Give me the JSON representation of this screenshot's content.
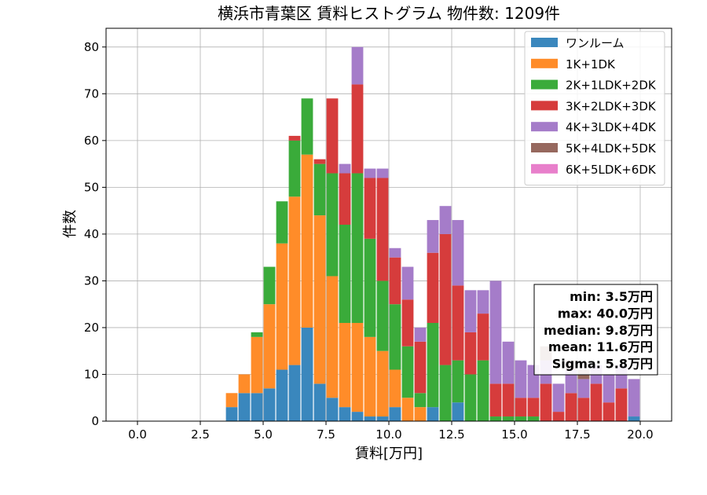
{
  "chart_data": {
    "type": "bar",
    "title": "横浜市青葉区 賃料ヒストグラム 物件数: 1209件",
    "xlabel": "賃料[万円]",
    "ylabel": "件数",
    "xlim": [
      -1.25,
      21.25
    ],
    "ylim": [
      0,
      84
    ],
    "xticks": [
      "0.0",
      "2.5",
      "5.0",
      "7.5",
      "10.0",
      "12.5",
      "15.0",
      "17.5",
      "20.0"
    ],
    "yticks": [
      "0",
      "10",
      "20",
      "30",
      "40",
      "50",
      "60",
      "70",
      "80"
    ],
    "grid": true,
    "legend_position": "top-right",
    "bin_width": 0.5,
    "x": [
      3.5,
      4.0,
      4.5,
      5.0,
      5.5,
      6.0,
      6.5,
      7.0,
      7.5,
      8.0,
      8.5,
      9.0,
      9.5,
      10.0,
      10.5,
      11.0,
      11.5,
      12.0,
      12.5,
      13.0,
      13.5,
      14.0,
      14.5,
      15.0,
      15.5,
      16.0,
      16.5,
      17.0,
      17.5,
      18.0,
      18.5,
      19.0,
      19.5
    ],
    "series": [
      {
        "name": "ワンルーム",
        "color": "#3a87bd",
        "values": [
          3,
          6,
          6,
          7,
          11,
          12,
          20,
          8,
          5,
          3,
          2,
          1,
          1,
          3,
          0,
          0,
          3,
          0,
          4,
          0,
          0,
          0,
          0,
          0,
          0,
          0,
          0,
          0,
          0,
          0,
          0,
          0,
          1
        ]
      },
      {
        "name": "1K+1DK",
        "color": "#ff8c29",
        "values": [
          3,
          4,
          12,
          18,
          27,
          36,
          37,
          36,
          26,
          18,
          19,
          17,
          14,
          8,
          5,
          3,
          0,
          0,
          0,
          0,
          0,
          0,
          0,
          0,
          0,
          0,
          0,
          0,
          0,
          0,
          0,
          0,
          0
        ]
      },
      {
        "name": "2K+1LDK+2DK",
        "color": "#3aab3a",
        "values": [
          0,
          0,
          1,
          8,
          9,
          12,
          12,
          11,
          22,
          21,
          32,
          21,
          15,
          14,
          11,
          3,
          18,
          12,
          9,
          10,
          13,
          1,
          1,
          1,
          1,
          0,
          0,
          0,
          0,
          0,
          0,
          0,
          0
        ]
      },
      {
        "name": "3K+2LDK+3DK",
        "color": "#d63c3c",
        "values": [
          0,
          0,
          0,
          0,
          0,
          1,
          0,
          1,
          16,
          11,
          19,
          13,
          22,
          10,
          10,
          11,
          15,
          28,
          16,
          9,
          10,
          7,
          7,
          4,
          4,
          8,
          2,
          6,
          5,
          8,
          4,
          7,
          0
        ]
      },
      {
        "name": "4K+3LDK+4DK",
        "color": "#a57cc9",
        "values": [
          0,
          0,
          0,
          0,
          0,
          0,
          0,
          0,
          0,
          2,
          8,
          2,
          2,
          2,
          7,
          3,
          7,
          6,
          14,
          9,
          5,
          22,
          9,
          8,
          7,
          5,
          6,
          5,
          4,
          4,
          6,
          5,
          8
        ]
      },
      {
        "name": "5K+4LDK+5DK",
        "color": "#96685e",
        "values": [
          0,
          0,
          0,
          0,
          0,
          0,
          0,
          0,
          0,
          0,
          0,
          0,
          0,
          0,
          0,
          0,
          0,
          0,
          0,
          0,
          0,
          0,
          0,
          0,
          0,
          3,
          0,
          2,
          2,
          0,
          0,
          0,
          0
        ]
      },
      {
        "name": "6K+5LDK+6DK",
        "color": "#e87fcb",
        "values": [
          0,
          0,
          0,
          0,
          0,
          0,
          0,
          0,
          0,
          0,
          0,
          0,
          0,
          0,
          0,
          0,
          0,
          0,
          0,
          0,
          0,
          0,
          0,
          0,
          0,
          0,
          0,
          0,
          0,
          0,
          0,
          0,
          0
        ]
      }
    ],
    "stats_lines": [
      "min: 3.5万円",
      "max: 40.0万円",
      "median: 9.8万円",
      "mean: 11.6万円",
      "Sigma: 5.8万円"
    ]
  }
}
